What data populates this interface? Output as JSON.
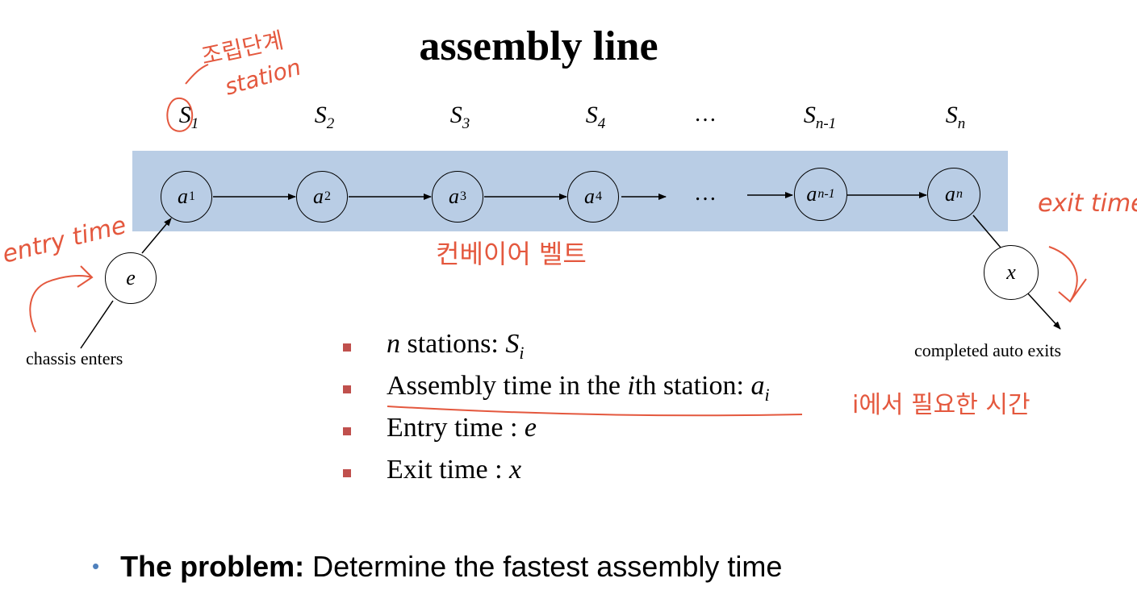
{
  "title": "assembly line",
  "stations": [
    {
      "label": "S",
      "sub": "1"
    },
    {
      "label": "S",
      "sub": "2"
    },
    {
      "label": "S",
      "sub": "3"
    },
    {
      "label": "S",
      "sub": "4"
    },
    {
      "label": "S",
      "sub": "n-1"
    },
    {
      "label": "S",
      "sub": "n"
    }
  ],
  "ellipsis": "…",
  "nodes": [
    {
      "label": "a",
      "sub": "1"
    },
    {
      "label": "a",
      "sub": "2"
    },
    {
      "label": "a",
      "sub": "3"
    },
    {
      "label": "a",
      "sub": "4"
    },
    {
      "label": "a",
      "sub": "n-1"
    },
    {
      "label": "a",
      "sub": "n"
    }
  ],
  "entry_node": "e",
  "exit_node": "x",
  "captions": {
    "enter": "chassis enters",
    "exit": "completed auto exits"
  },
  "bullets": [
    {
      "pre_italic": "n",
      "text": " stations: ",
      "var": "S",
      "sub": "i"
    },
    {
      "text": "Assembly time in the ",
      "mid_italic": "i",
      "text2": "th station: ",
      "var": "a",
      "sub": "i"
    },
    {
      "text": "Entry time : ",
      "var": "e"
    },
    {
      "text": "Exit time : ",
      "var": "x"
    }
  ],
  "problem": {
    "bullet": "•",
    "bold": "The problem:",
    "text": " Determine the fastest assembly time"
  },
  "annotations": {
    "station_ko": "조립단계",
    "station_en": "station",
    "entry": "entry time",
    "exit": "exit time",
    "belt": "컨베이어 벨트",
    "bullet_note": "i에서 필요한 시간"
  },
  "colors": {
    "belt": "#b9cde5",
    "bullet": "#c0504d",
    "annotation": "#e4583e",
    "problem_dot": "#4f81bd"
  }
}
